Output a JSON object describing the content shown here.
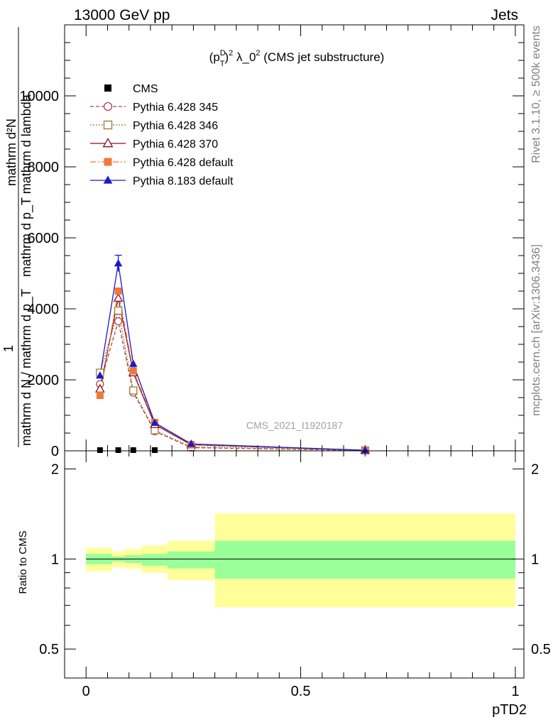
{
  "header": {
    "left": "13000 GeV pp",
    "right": "Jets"
  },
  "side_labels": {
    "rivet": "Rivet 3.1.10, ≥ 500k events",
    "mcplots": "mcplots.cern.ch [arXiv:1306.3436]"
  },
  "watermark": "CMS_2021_I1920187",
  "chart_data": [
    {
      "type": "line",
      "title_parts": {
        "open": "(p",
        "sup": "D",
        "sub": "T",
        "close": ")",
        "sq": "2",
        "lam": " λ_0",
        "sq2": "2",
        "rest": " (CMS jet substructure)"
      },
      "ylabel": {
        "numerator": "mathrm d²N",
        "denominator": "mathrm d p_T mathrm d lambda",
        "prefix_one": "1",
        "prefix_den": "mathrm d N / mathrm d p_T"
      },
      "xlim": [
        -0.05,
        1.02
      ],
      "ylim": [
        0,
        12000
      ],
      "yticks": [
        {
          "v": 0,
          "label": "0"
        },
        {
          "v": 2000,
          "label": "2000"
        },
        {
          "v": 4000,
          "label": "4000"
        },
        {
          "v": 6000,
          "label": "6000"
        },
        {
          "v": 8000,
          "label": "8000"
        },
        {
          "v": 10000,
          "label": "10000"
        }
      ],
      "legend_position": "top-left",
      "x": [
        0.0325,
        0.075,
        0.11,
        0.16,
        0.245,
        0.65
      ],
      "series": [
        {
          "name": "CMS",
          "color": "#000000",
          "marker": "square",
          "dash": "none",
          "values": [
            20,
            20,
            20,
            20,
            null,
            null
          ]
        },
        {
          "name": "Pythia 6.428 345",
          "color": "#b04050",
          "marker": "circle-open",
          "dash": "5,3",
          "values": [
            1880,
            3650,
            1640,
            550,
            90,
            10
          ]
        },
        {
          "name": "Pythia 6.428 346",
          "color": "#9a7a30",
          "marker": "square-open",
          "dash": "2,2",
          "values": [
            2200,
            3950,
            1700,
            580,
            110,
            12
          ]
        },
        {
          "name": "Pythia 6.428 370",
          "color": "#8b0e1e",
          "marker": "triangle-open",
          "dash": "none",
          "values": [
            1740,
            4300,
            2200,
            740,
            170,
            15
          ]
        },
        {
          "name": "Pythia 6.428 default",
          "color": "#f07838",
          "marker": "square-filled",
          "dash": "8,3,2,3",
          "values": [
            1560,
            4500,
            2250,
            800,
            180,
            15
          ]
        },
        {
          "name": "Pythia 8.183 default",
          "color": "#1a1acc",
          "marker": "triangle-filled",
          "dash": "none",
          "values": [
            2120,
            5280,
            2450,
            790,
            195,
            15
          ]
        }
      ]
    },
    {
      "type": "area",
      "ylabel": "Ratio to CMS",
      "xlabel": "pTD2",
      "xlim": [
        -0.05,
        1.02
      ],
      "ylim": [
        0.4,
        2.3
      ],
      "xticks": [
        {
          "v": 0,
          "label": "0"
        },
        {
          "v": 0.5,
          "label": "0.5"
        },
        {
          "v": 1,
          "label": "1"
        }
      ],
      "yticks": [
        {
          "v": 0.5,
          "label": "0.5"
        },
        {
          "v": 1,
          "label": "1"
        },
        {
          "v": 2,
          "label": "2"
        }
      ],
      "bins": [
        {
          "x0": 0.0,
          "x1": 0.06,
          "g": [
            0.96,
            1.04
          ],
          "y": [
            0.91,
            1.09
          ]
        },
        {
          "x0": 0.06,
          "x1": 0.09,
          "g": [
            0.98,
            1.02
          ],
          "y": [
            0.94,
            1.06
          ]
        },
        {
          "x0": 0.09,
          "x1": 0.13,
          "g": [
            0.97,
            1.03
          ],
          "y": [
            0.93,
            1.08
          ]
        },
        {
          "x0": 0.13,
          "x1": 0.19,
          "g": [
            0.95,
            1.04
          ],
          "y": [
            0.9,
            1.11
          ]
        },
        {
          "x0": 0.19,
          "x1": 0.3,
          "g": [
            0.93,
            1.06
          ],
          "y": [
            0.85,
            1.15
          ]
        },
        {
          "x0": 0.3,
          "x1": 1.0,
          "g": [
            0.86,
            1.15
          ],
          "y": [
            0.69,
            1.42
          ]
        }
      ],
      "colors": {
        "green": "#99ff99",
        "yellow": "#ffff99"
      }
    }
  ]
}
